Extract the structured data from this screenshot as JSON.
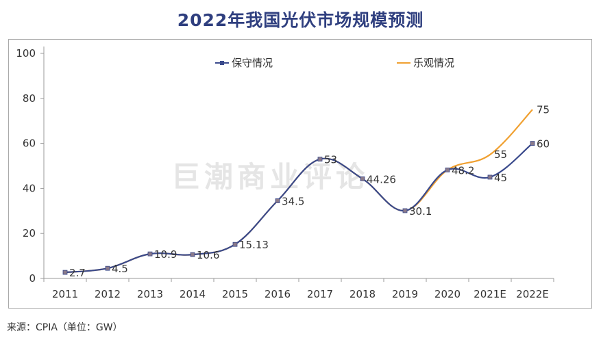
{
  "title": "2022年我国光伏市场规模预测",
  "watermark": "巨潮商业评论",
  "source": "来源：CPIA（单位：GW）",
  "colors": {
    "title": "#2f3f7f",
    "conservative": "#3a4a8c",
    "optimistic": "#f0a030",
    "axis": "#9a9a9a",
    "marker": "#8a7a8a"
  },
  "chart_data": {
    "type": "line",
    "title": "2022年我国光伏市场规模预测",
    "xlabel": "",
    "ylabel": "",
    "ylim": [
      0,
      100
    ],
    "yticks": [
      0,
      20,
      40,
      60,
      80,
      100
    ],
    "grid": false,
    "legend": "top",
    "categories": [
      "2011",
      "2012",
      "2013",
      "2014",
      "2015",
      "2016",
      "2017",
      "2018",
      "2019",
      "2020",
      "2021E",
      "2022E"
    ],
    "series": [
      {
        "name": "保守情况",
        "values": [
          2.7,
          4.5,
          10.9,
          10.6,
          15.13,
          34.5,
          53,
          44.26,
          30.1,
          48.2,
          45,
          60
        ],
        "labels": [
          "2.7",
          "4.5",
          "10.9",
          "10.6",
          "15.13",
          "34.5",
          "53",
          "44.26",
          "30.1",
          "48.2",
          "45",
          "60"
        ],
        "marker": "square"
      },
      {
        "name": "乐观情况",
        "values": [
          2.7,
          4.5,
          10.9,
          10.6,
          15.13,
          34.5,
          53,
          44.26,
          30.1,
          48.2,
          55,
          75
        ],
        "labels": [
          "",
          "",
          "",
          "",
          "",
          "",
          "",
          "",
          "",
          "",
          "55",
          "75"
        ],
        "marker": "none"
      }
    ]
  }
}
